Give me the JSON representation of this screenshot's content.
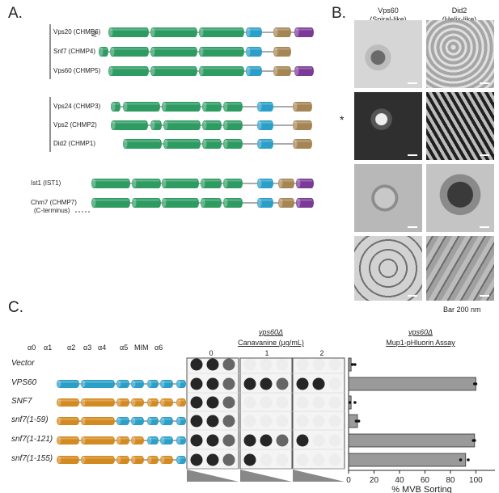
{
  "panelA": {
    "letter": "A.",
    "rows": [
      {
        "label": "Vps20 (CHMP6)"
      },
      {
        "label": "Snf7 (CHMP4)"
      },
      {
        "label": "Vps60 (CHMP5)"
      },
      {
        "label": "Vps24 (CHMP3)"
      },
      {
        "label": "Vps2 (CHMP2)"
      },
      {
        "label": "Did2 (CHMP1)"
      },
      {
        "label": "Ist1 (IST1)"
      },
      {
        "label": "Chm7 (CHMP7)",
        "sublabel": "(C-terminus)"
      }
    ],
    "colors": {
      "core": "#2e9b62",
      "mim": "#2b9fc7",
      "tan": "#a58554",
      "purple": "#7a3a96"
    }
  },
  "panelB": {
    "letter": "B.",
    "columns": [
      {
        "name": "Vps60",
        "sub": "(Spiral-like)"
      },
      {
        "name": "Did2",
        "sub": "(Helix-like)"
      }
    ],
    "asterisk": "*",
    "scale": "Bar 200 nm"
  },
  "panelC": {
    "letter": "C.",
    "helix_labels": [
      "α0",
      "α1",
      "α2",
      "α3",
      "α4",
      "α5",
      "MIM",
      "α6"
    ],
    "strains": [
      "Vector",
      "VPS60",
      "SNF7",
      "snf7(1-59)",
      "snf7(1-121)",
      "snf7(1-155)"
    ],
    "spot_header": {
      "strain": "vps60Δ",
      "title": "Canavanine (μg/mL)",
      "concentrations": [
        "0",
        "1",
        "2"
      ]
    },
    "colors": {
      "vps60": "#2b9fc7",
      "snf7": "#d38a21"
    },
    "chart_data": {
      "type": "bar",
      "title": "Mup1-pHluorin Assay",
      "strain_header": "vps60Δ",
      "categories": [
        "Vector",
        "VPS60",
        "SNF7",
        "snf7(1-59)",
        "snf7(1-121)",
        "snf7(1-155)"
      ],
      "values": [
        2,
        100,
        2,
        7,
        99,
        92
      ],
      "points": [
        [
          3,
          5
        ],
        [
          99,
          100
        ],
        [
          1,
          5
        ],
        [
          6,
          8
        ],
        [
          98,
          99
        ],
        [
          88,
          94
        ]
      ],
      "xlabel": "% MVB Sorting",
      "xticks": [
        "0",
        "20",
        "40",
        "60",
        "80",
        "100"
      ],
      "xlim": [
        0,
        115
      ]
    }
  }
}
